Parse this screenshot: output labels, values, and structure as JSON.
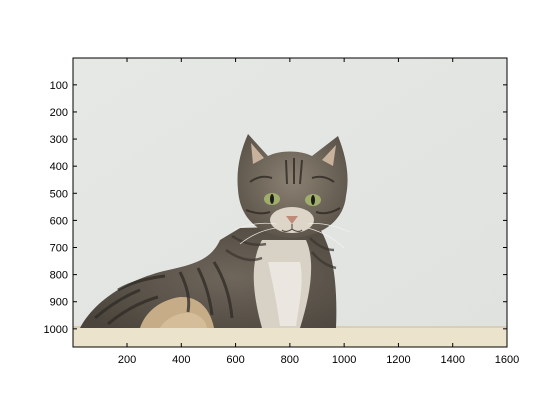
{
  "figure": {
    "image": {
      "subject": "tabby cat sitting on a light wooden surface against a pale grey-white wall",
      "colors": {
        "wall": "#e4e6e3",
        "wall_shadow": "#d5d8d5",
        "fur_dark": "#3a3530",
        "fur_mid": "#7a7166",
        "fur_light": "#b9ad9d",
        "fur_tan": "#c9b28c",
        "chest_white": "#e8e4dc",
        "eye_green": "#9fae6a",
        "nose_pink": "#c08a78",
        "wood": "#ece3cc"
      }
    },
    "axes": {
      "x_ticks": [
        200,
        400,
        600,
        800,
        1000,
        1200,
        1400,
        1600
      ],
      "y_ticks": [
        100,
        200,
        300,
        400,
        500,
        600,
        700,
        800,
        900,
        1000
      ],
      "x_range": [
        1,
        1600
      ],
      "y_range": [
        1,
        1067
      ],
      "y_direction": "reversed",
      "box": true,
      "grid": false,
      "axis_color": "#000000"
    }
  }
}
